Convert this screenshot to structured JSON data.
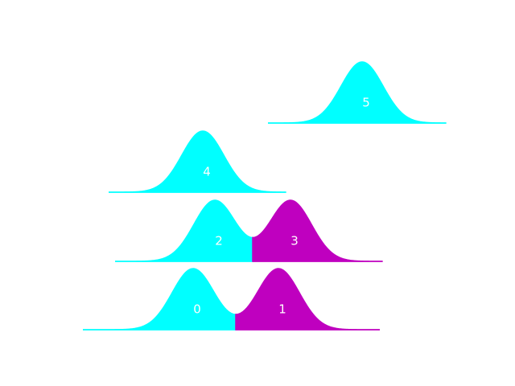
{
  "nodes": [
    {
      "label": "0",
      "color": "#00ffff"
    },
    {
      "label": "1",
      "color": "#bf00bf"
    },
    {
      "label": "2",
      "color": "#00ffff"
    },
    {
      "label": "3",
      "color": "#bf00bf"
    },
    {
      "label": "4",
      "color": "#00ffff"
    },
    {
      "label": "5",
      "color": "#00ffff"
    }
  ]
}
